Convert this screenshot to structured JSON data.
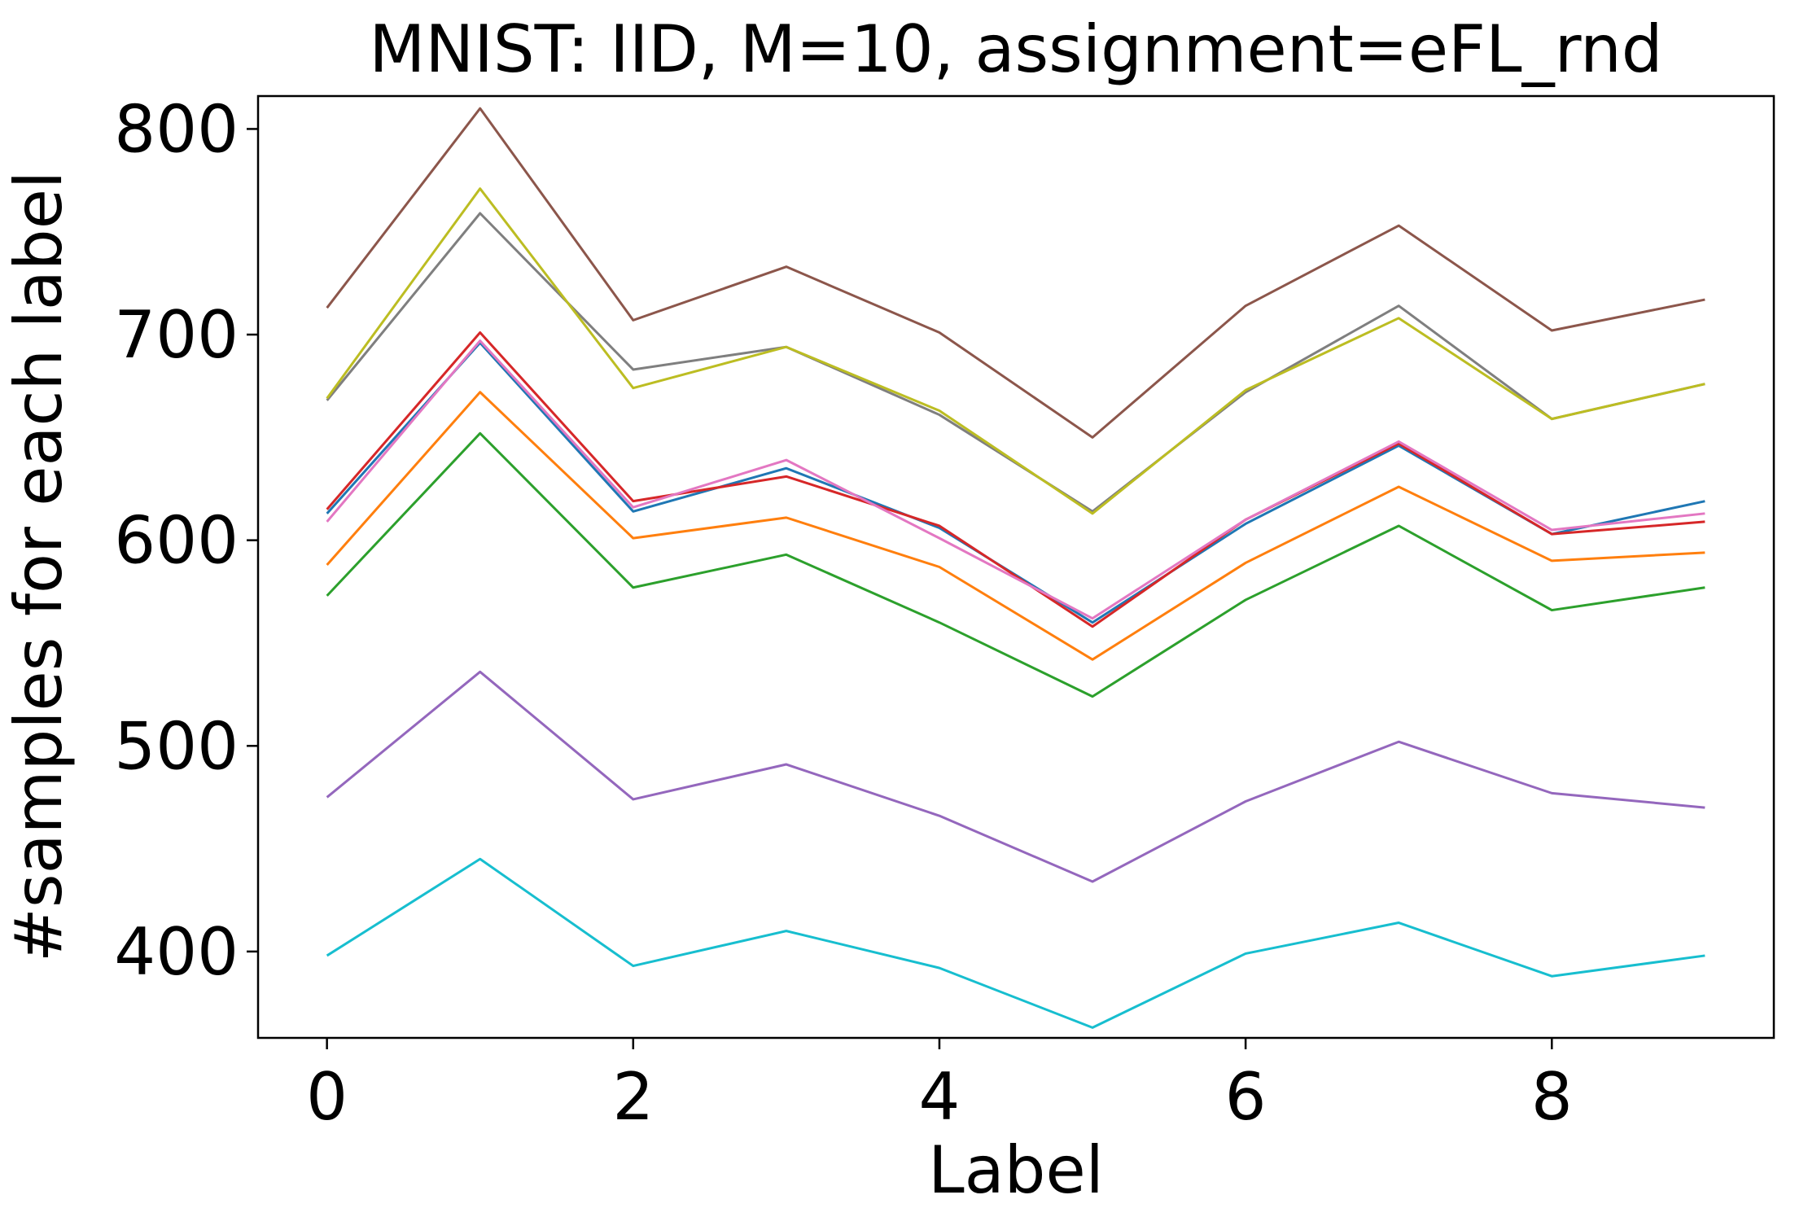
{
  "chart_data": {
    "type": "line",
    "title": "MNIST: IID, M=10, assignment=eFL_rnd",
    "xlabel": "Label",
    "ylabel": "#samples for each label",
    "xlim": [
      -0.45,
      9.45
    ],
    "ylim": [
      358,
      816
    ],
    "x": [
      0,
      1,
      2,
      3,
      4,
      5,
      6,
      7,
      8,
      9
    ],
    "xticks": [
      0,
      2,
      4,
      6,
      8
    ],
    "yticks": [
      400,
      500,
      600,
      700,
      800
    ],
    "grid": false,
    "legend": "none",
    "series": [
      {
        "color": "#1f77b4",
        "values": [
          613,
          696,
          614,
          635,
          606,
          560,
          608,
          646,
          603,
          619
        ]
      },
      {
        "color": "#ff7f0e",
        "values": [
          588,
          672,
          601,
          611,
          587,
          542,
          589,
          626,
          590,
          594
        ]
      },
      {
        "color": "#2ca02c",
        "values": [
          573,
          652,
          577,
          593,
          560,
          524,
          571,
          607,
          566,
          577
        ]
      },
      {
        "color": "#d62728",
        "values": [
          615,
          701,
          619,
          631,
          607,
          558,
          610,
          647,
          603,
          609
        ]
      },
      {
        "color": "#9467bd",
        "values": [
          475,
          536,
          474,
          491,
          466,
          434,
          473,
          502,
          477,
          470
        ]
      },
      {
        "color": "#8c564b",
        "values": [
          713,
          810,
          707,
          733,
          701,
          650,
          714,
          753,
          702,
          717
        ]
      },
      {
        "color": "#e377c2",
        "values": [
          609,
          697,
          616,
          639,
          601,
          562,
          610,
          648,
          605,
          613
        ]
      },
      {
        "color": "#7f7f7f",
        "values": [
          668,
          759,
          683,
          694,
          661,
          614,
          672,
          714,
          659,
          676
        ]
      },
      {
        "color": "#bcbd22",
        "values": [
          669,
          771,
          674,
          694,
          663,
          613,
          673,
          708,
          659,
          676
        ]
      },
      {
        "color": "#17becf",
        "values": [
          398,
          445,
          393,
          410,
          392,
          363,
          399,
          414,
          388,
          398
        ]
      }
    ]
  }
}
